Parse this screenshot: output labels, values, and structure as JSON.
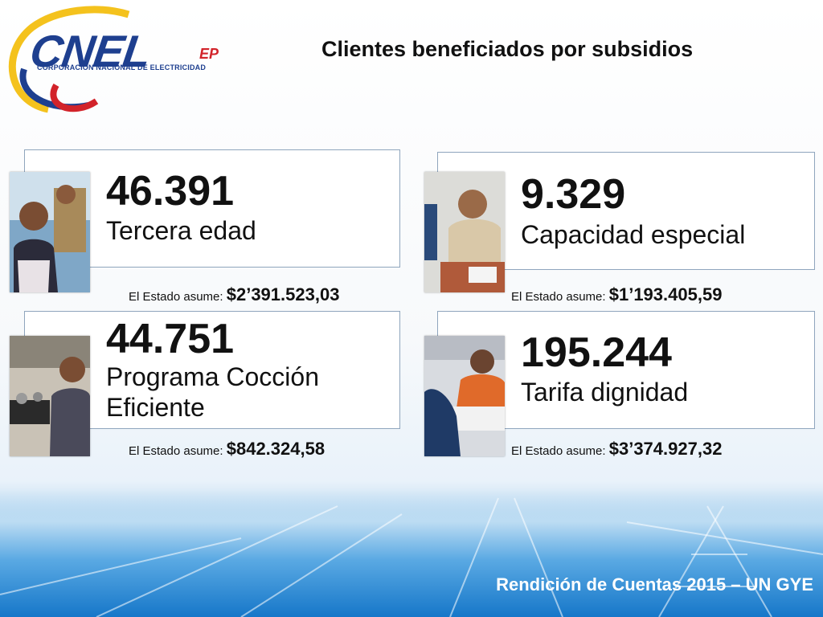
{
  "logo": {
    "wordmark": "CNEL",
    "suffix": "EP",
    "subtitle": "CORPORACIÓN NACIONAL DE ELECTRICIDAD",
    "colors": {
      "blue": "#1e3f8f",
      "yellow": "#f4c21d",
      "red": "#d2232a"
    }
  },
  "title": "Clientes beneficiados por subsidios",
  "cards": [
    {
      "number": "46.391",
      "label": "Tercera edad",
      "assume_label": "El Estado asume: ",
      "amount": "$2’391.523,03",
      "photo_icon": "elderly-woman-photo"
    },
    {
      "number": "9.329",
      "label": "Capacidad especial",
      "assume_label": "El Estado asume: ",
      "amount": "$1’193.405,59",
      "photo_icon": "man-at-desk-photo"
    },
    {
      "number": "44.751",
      "label": "Programa Cocción",
      "label2": "Eficiente",
      "assume_label": "El Estado asume: ",
      "amount": "$842.324,58",
      "photo_icon": "woman-in-kitchen-photo"
    },
    {
      "number": "195.244",
      "label": "Tarifa dignidad",
      "assume_label": "El Estado asume: ",
      "amount": "$3’374.927,32",
      "photo_icon": "woman-at-counter-photo"
    }
  ],
  "footer": "Rendición de Cuentas 2015 – UN GYE"
}
